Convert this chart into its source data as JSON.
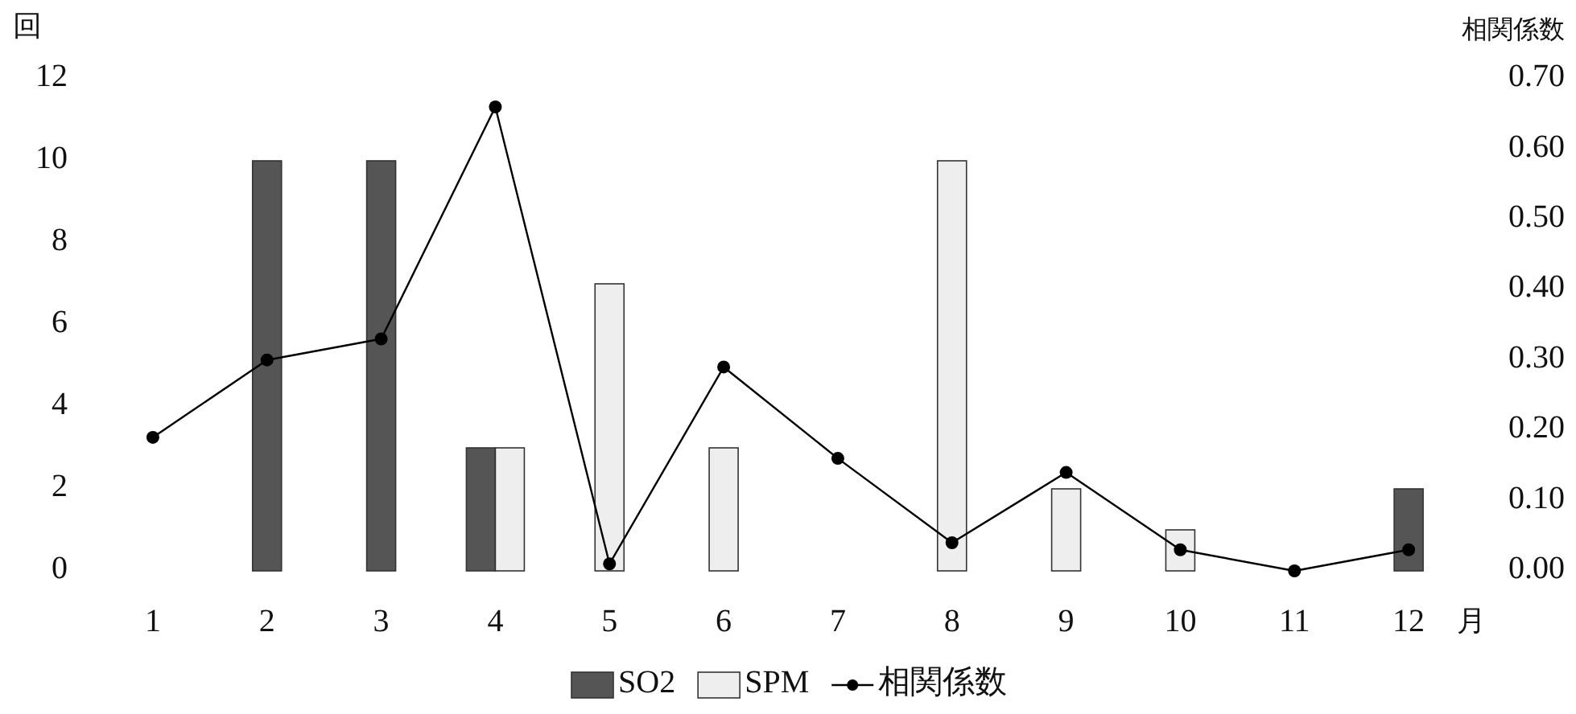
{
  "chart_data": {
    "type": "bar",
    "categories": [
      "1",
      "2",
      "3",
      "4",
      "5",
      "6",
      "7",
      "8",
      "9",
      "10",
      "11",
      "12"
    ],
    "xlabel": "月",
    "ylabel": "回",
    "y2label": "相関係数",
    "ylim": [
      0,
      12
    ],
    "yticks": [
      0,
      2,
      4,
      6,
      8,
      10,
      12
    ],
    "y2lim": [
      0,
      0.7
    ],
    "y2ticks": [
      {
        "value": 0,
        "label": "0.00"
      },
      {
        "value": 0.1,
        "label": "0.10"
      },
      {
        "value": 0.2,
        "label": "0.20"
      },
      {
        "value": 0.3,
        "label": "0.30"
      },
      {
        "value": 0.4,
        "label": "0.40"
      },
      {
        "value": 0.5,
        "label": "0.50"
      },
      {
        "value": 0.6,
        "label": "0.60"
      },
      {
        "value": 0.7,
        "label": "0.70"
      }
    ],
    "legend": "bottom",
    "grid": false,
    "marker": "circle",
    "series": [
      {
        "name": "SO2",
        "color": "#555555",
        "values": [
          null,
          10,
          10,
          3,
          null,
          null,
          null,
          null,
          null,
          null,
          null,
          2
        ]
      },
      {
        "name": "SPM",
        "color": "#eeeeee",
        "values": [
          null,
          null,
          null,
          3,
          7,
          3,
          null,
          10,
          2,
          1,
          null,
          null
        ]
      },
      {
        "name": "相関係数",
        "type": "line",
        "axis": "y2",
        "color": "#000000",
        "values": [
          0.19,
          0.3,
          0.33,
          0.66,
          0.01,
          0.29,
          0.16,
          0.04,
          0.14,
          0.03,
          0.0,
          0.03
        ]
      }
    ]
  }
}
